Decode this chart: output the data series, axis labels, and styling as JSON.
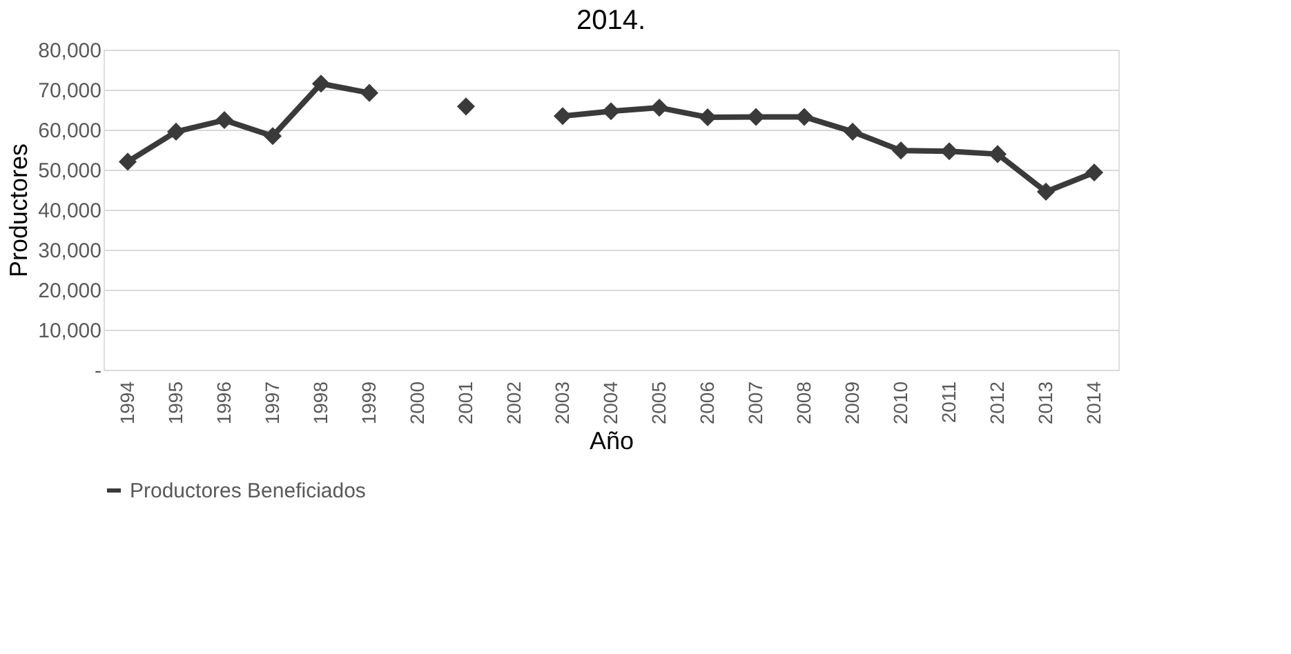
{
  "chart_data": {
    "type": "line",
    "title": "2014.",
    "xlabel": "Año",
    "ylabel": "Productores",
    "categories": [
      "1994",
      "1995",
      "1996",
      "1997",
      "1998",
      "1999",
      "2000",
      "2001",
      "2002",
      "2003",
      "2004",
      "2005",
      "2006",
      "2007",
      "2008",
      "2009",
      "2010",
      "2011",
      "2012",
      "2013",
      "2014"
    ],
    "series": [
      {
        "name": "Productores Beneficiados",
        "color": "#3a3a3a",
        "values": [
          52000,
          59500,
          62400,
          58400,
          71500,
          69200,
          null,
          65800,
          null,
          63400,
          64600,
          65500,
          63100,
          63200,
          63200,
          59500,
          54800,
          54600,
          53900,
          44500,
          49300
        ]
      }
    ],
    "ylim": [
      0,
      80000
    ],
    "yticks": [
      {
        "value": 0,
        "label": "-"
      },
      {
        "value": 10000,
        "label": "10,000"
      },
      {
        "value": 20000,
        "label": "20,000"
      },
      {
        "value": 30000,
        "label": "30,000"
      },
      {
        "value": 40000,
        "label": "40,000"
      },
      {
        "value": 50000,
        "label": "50,000"
      },
      {
        "value": 60000,
        "label": "60,000"
      },
      {
        "value": 70000,
        "label": "70,000"
      },
      {
        "value": 80000,
        "label": "80,000"
      }
    ],
    "grid": "y",
    "legend": "bottom",
    "marker": "diamond",
    "line_style": "solid"
  }
}
